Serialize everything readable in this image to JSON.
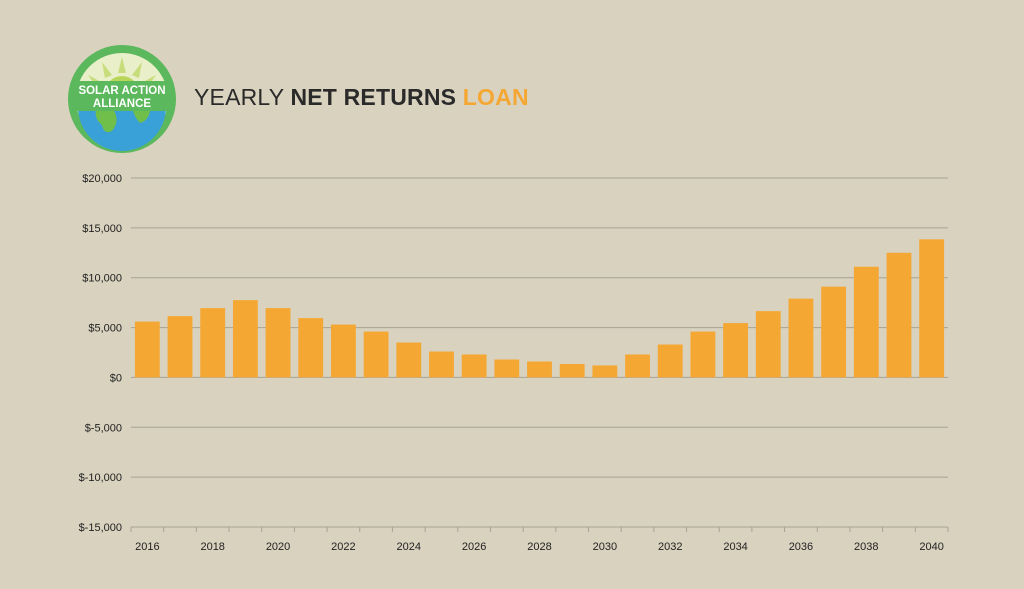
{
  "logo": {
    "line1": "SOLAR ACTION",
    "line2": "ALLIANCE"
  },
  "title": {
    "part1": "YEARLY",
    "part2": "NET RETURNS",
    "part3": "LOAN"
  },
  "colors": {
    "background": "#d9d2bf",
    "bar": "#f5a733",
    "accent": "#f5a733",
    "gridline": "#a8a293"
  },
  "chart_data": {
    "type": "bar",
    "categories": [
      "2016",
      "2017",
      "2018",
      "2019",
      "2020",
      "2021",
      "2022",
      "2023",
      "2024",
      "2025",
      "2026",
      "2027",
      "2028",
      "2029",
      "2030",
      "2031",
      "2032",
      "2033",
      "2034",
      "2035",
      "2036",
      "2037",
      "2038",
      "2039",
      "2040"
    ],
    "values": [
      5600,
      6150,
      6950,
      7750,
      6950,
      5950,
      5300,
      4600,
      3500,
      2600,
      2300,
      1800,
      1600,
      1350,
      1200,
      2300,
      3300,
      4600,
      5450,
      6650,
      7900,
      9100,
      11100,
      12500,
      13850
    ],
    "x_tick_labels": [
      "2016",
      "2018",
      "2020",
      "2022",
      "2024",
      "2026",
      "2028",
      "2030",
      "2032",
      "2034",
      "2036",
      "2038",
      "2040"
    ],
    "y_ticks": [
      20000,
      15000,
      10000,
      5000,
      0,
      -5000,
      -10000,
      -15000
    ],
    "y_tick_labels": [
      "$20,000",
      "$15,000",
      "$10,000",
      "$5,000",
      "$0",
      "$-5,000",
      "$-10,000",
      "$-15,000"
    ],
    "ylim": [
      -15000,
      20000
    ],
    "grid": true,
    "xlabel": "",
    "ylabel": ""
  }
}
